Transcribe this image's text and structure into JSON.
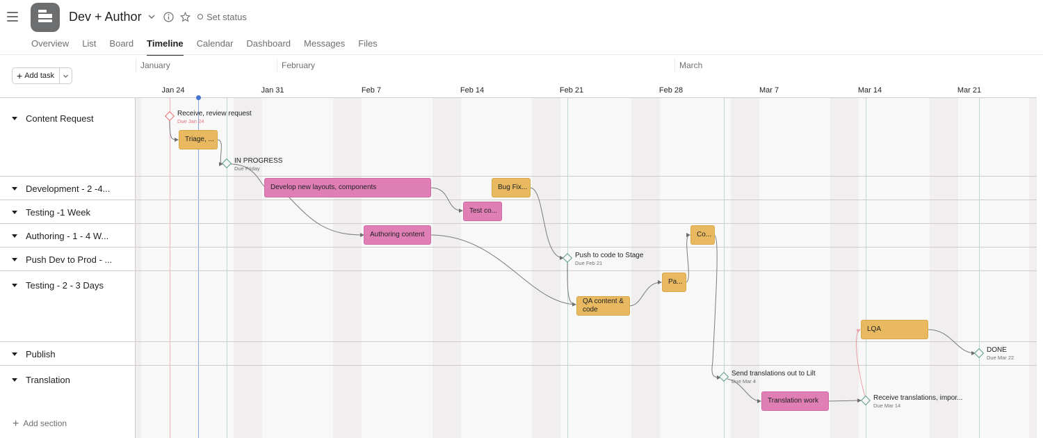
{
  "header": {
    "project_title": "Dev + Author",
    "set_status_label": "Set status",
    "icons": [
      "hamburger-icon",
      "project-icon",
      "chevron-down-icon",
      "info-icon",
      "star-icon"
    ]
  },
  "tabs": [
    {
      "label": "Overview",
      "active": false
    },
    {
      "label": "List",
      "active": false
    },
    {
      "label": "Board",
      "active": false
    },
    {
      "label": "Timeline",
      "active": true
    },
    {
      "label": "Calendar",
      "active": false
    },
    {
      "label": "Dashboard",
      "active": false
    },
    {
      "label": "Messages",
      "active": false
    },
    {
      "label": "Files",
      "active": false
    }
  ],
  "toolbar": {
    "add_task_label": "Add task"
  },
  "timeline": {
    "months": [
      "January",
      "February",
      "March"
    ],
    "days": [
      "Jan 24",
      "Jan 31",
      "Feb 7",
      "Feb 14",
      "Feb 21",
      "Feb 28",
      "Mar 7",
      "Mar 14",
      "Mar 21"
    ]
  },
  "sections": [
    {
      "name": "Content Request"
    },
    {
      "name": "Development - 2 -4..."
    },
    {
      "name": "Testing -1 Week"
    },
    {
      "name": "Authoring - 1 - 4 W..."
    },
    {
      "name": "Push Dev to Prod - ..."
    },
    {
      "name": "Testing - 2 - 3 Days"
    },
    {
      "name": "Publish"
    },
    {
      "name": "Translation"
    }
  ],
  "add_section_label": "Add section",
  "tasks": {
    "triage": "Triage, ...",
    "develop": "Develop new layouts, components",
    "bugfix": "Bug Fix...",
    "testco": "Test co...",
    "authoring": "Authoring content",
    "co": "Co...",
    "pa": "Pa...",
    "qa": "QA content & code",
    "lqa": "LQA",
    "translation_work": "Translation work"
  },
  "milestones": {
    "receive_review": {
      "title": "Receive, review request",
      "due": "Due Jan 24"
    },
    "in_progress": {
      "title": "IN PROGRESS",
      "due": "Due Friday"
    },
    "push_stage": {
      "title": "Push to code to Stage",
      "due": "Due Feb 21"
    },
    "done": {
      "title": "DONE",
      "due": "Due Mar 22"
    },
    "send_translations": {
      "title": "Send translations out to Lilt",
      "due": "Due Mar 4"
    },
    "receive_translations": {
      "title": "Receive translations, impor...",
      "due": "Due Mar 14"
    }
  },
  "colors": {
    "task_yellow": "#e8b960",
    "task_pink": "#e07fb6",
    "milestone_green": "#58a182",
    "overdue_red": "#e8727a",
    "today_blue": "#4573d2"
  }
}
